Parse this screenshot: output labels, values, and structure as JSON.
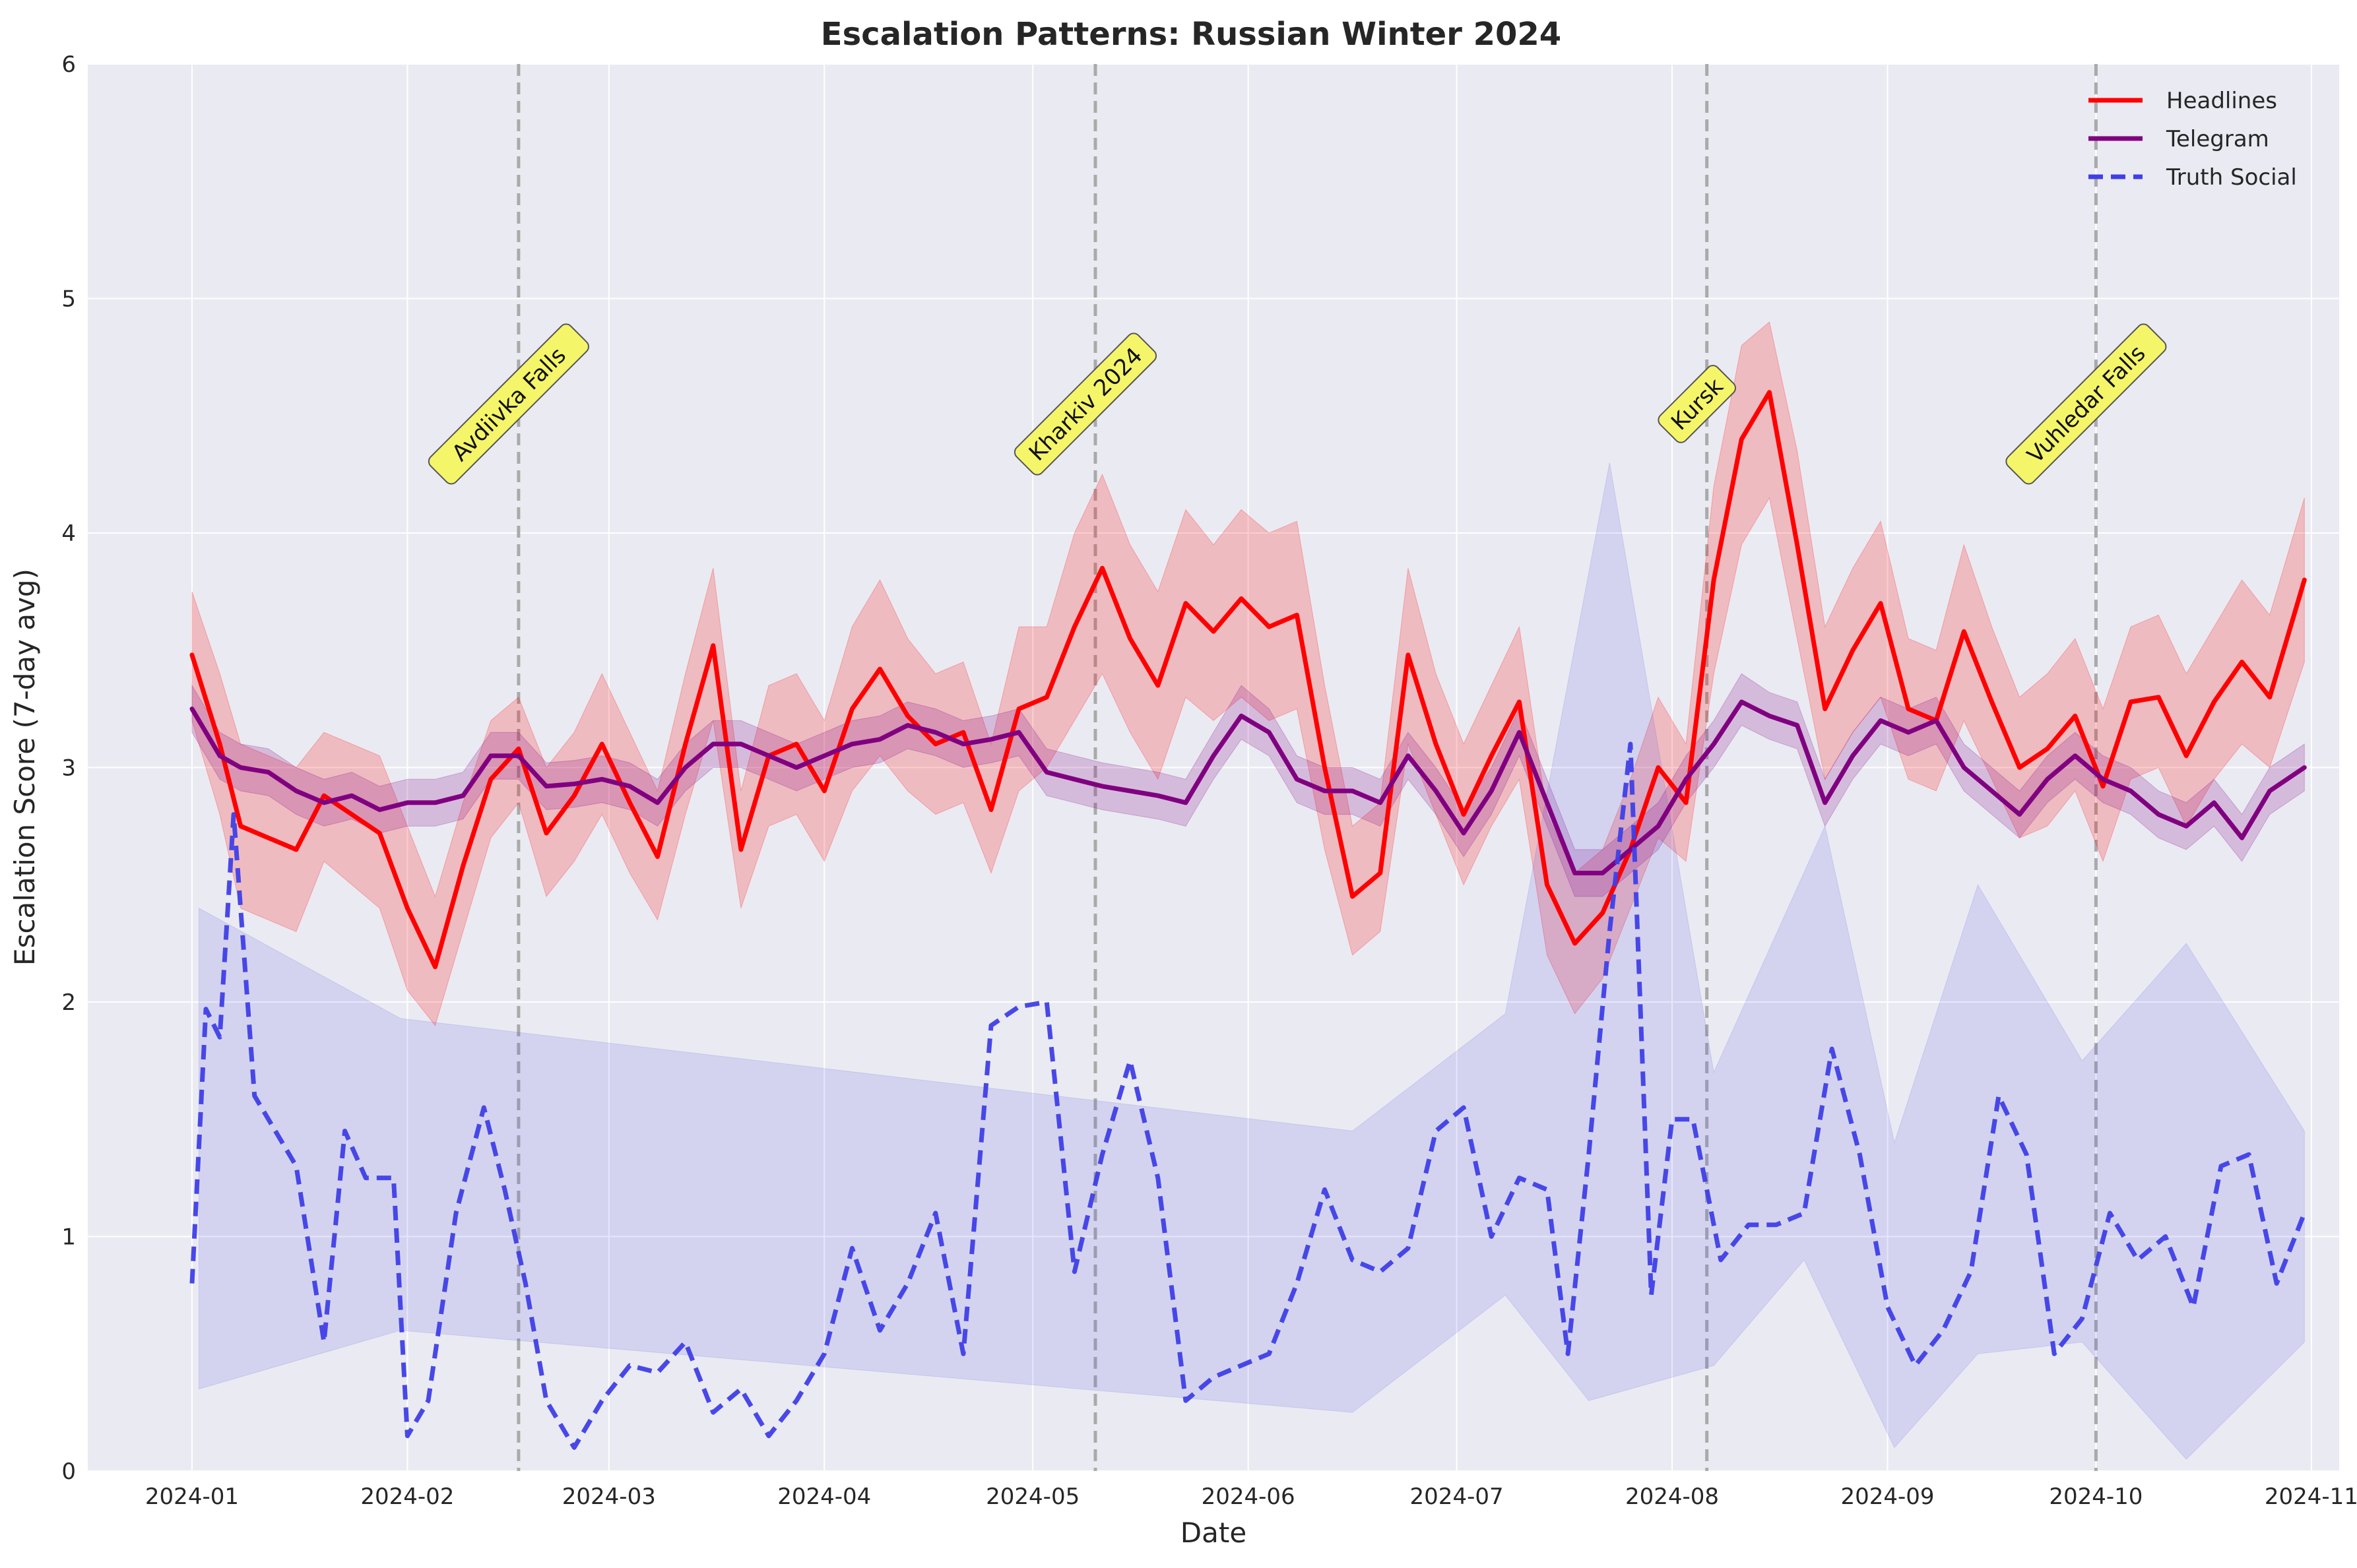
{
  "chart_data": {
    "type": "line",
    "title": "Escalation Patterns: Russian Winter 2024",
    "xlabel": "Date",
    "ylabel": "Escalation Score (7-day avg)",
    "xlim": [
      "2023-12-17",
      "2024-11-05"
    ],
    "ylim": [
      0,
      6
    ],
    "yticks": [
      "0",
      "1",
      "2",
      "3",
      "4",
      "5",
      "6"
    ],
    "xticks": [
      "2024-01",
      "2024-02",
      "2024-03",
      "2024-04",
      "2024-05",
      "2024-06",
      "2024-07",
      "2024-08",
      "2024-09",
      "2024-10",
      "2024-11"
    ],
    "grid": true,
    "legend_position": "top-right",
    "colors": {
      "background": "#eaeaf2",
      "grid": "#ffffff",
      "headlines": "#ff0000",
      "telegram": "#800080",
      "truth_social": "#3f3fe6",
      "event_line": "#aaaaaa",
      "event_box": "#f5f56a"
    },
    "events": [
      {
        "date": "2024-02-17",
        "label": "Avdiivka Falls"
      },
      {
        "date": "2024-05-10",
        "label": "Kharkiv 2024"
      },
      {
        "date": "2024-08-06",
        "label": "Kursk"
      },
      {
        "date": "2024-10-01",
        "label": "Vuhledar Falls"
      }
    ],
    "series": [
      {
        "name": "Headlines",
        "style": "solid",
        "x": [
          "2024-01-01",
          "2024-01-05",
          "2024-01-08",
          "2024-01-12",
          "2024-01-16",
          "2024-01-20",
          "2024-01-24",
          "2024-01-28",
          "2024-02-01",
          "2024-02-05",
          "2024-02-09",
          "2024-02-13",
          "2024-02-17",
          "2024-02-21",
          "2024-02-25",
          "2024-02-29",
          "2024-03-04",
          "2024-03-08",
          "2024-03-12",
          "2024-03-16",
          "2024-03-20",
          "2024-03-24",
          "2024-03-28",
          "2024-04-01",
          "2024-04-05",
          "2024-04-09",
          "2024-04-13",
          "2024-04-17",
          "2024-04-21",
          "2024-04-25",
          "2024-04-29",
          "2024-05-03",
          "2024-05-07",
          "2024-05-11",
          "2024-05-15",
          "2024-05-19",
          "2024-05-23",
          "2024-05-27",
          "2024-05-31",
          "2024-06-04",
          "2024-06-08",
          "2024-06-12",
          "2024-06-16",
          "2024-06-20",
          "2024-06-24",
          "2024-06-28",
          "2024-07-02",
          "2024-07-06",
          "2024-07-10",
          "2024-07-14",
          "2024-07-18",
          "2024-07-22",
          "2024-07-26",
          "2024-07-30",
          "2024-08-03",
          "2024-08-07",
          "2024-08-11",
          "2024-08-15",
          "2024-08-19",
          "2024-08-23",
          "2024-08-27",
          "2024-08-31",
          "2024-09-04",
          "2024-09-08",
          "2024-09-12",
          "2024-09-16",
          "2024-09-20",
          "2024-09-24",
          "2024-09-28",
          "2024-10-02",
          "2024-10-06",
          "2024-10-10",
          "2024-10-14",
          "2024-10-18",
          "2024-10-22",
          "2024-10-26",
          "2024-10-31"
        ],
        "y": [
          3.48,
          3.1,
          2.75,
          2.7,
          2.65,
          2.88,
          2.8,
          2.72,
          2.4,
          2.15,
          2.58,
          2.95,
          3.08,
          2.72,
          2.88,
          3.1,
          2.85,
          2.62,
          3.1,
          3.52,
          2.65,
          3.05,
          3.1,
          2.9,
          3.25,
          3.42,
          3.22,
          3.1,
          3.15,
          2.82,
          3.25,
          3.3,
          3.6,
          3.85,
          3.55,
          3.35,
          3.7,
          3.58,
          3.72,
          3.6,
          3.65,
          3.0,
          2.45,
          2.55,
          3.48,
          3.1,
          2.8,
          3.05,
          3.28,
          2.5,
          2.25,
          2.38,
          2.65,
          3.0,
          2.85,
          3.8,
          4.4,
          4.6,
          3.95,
          3.25,
          3.5,
          3.7,
          3.25,
          3.2,
          3.58,
          3.28,
          3.0,
          3.08,
          3.22,
          2.92,
          3.28,
          3.3,
          3.05,
          3.28,
          3.45,
          3.3,
          3.8
        ],
        "band_low": [
          3.2,
          2.8,
          2.4,
          2.35,
          2.3,
          2.6,
          2.5,
          2.4,
          2.05,
          1.9,
          2.3,
          2.7,
          2.85,
          2.45,
          2.6,
          2.8,
          2.55,
          2.35,
          2.8,
          3.2,
          2.4,
          2.75,
          2.8,
          2.6,
          2.9,
          3.05,
          2.9,
          2.8,
          2.85,
          2.55,
          2.9,
          3.0,
          3.2,
          3.4,
          3.15,
          2.95,
          3.3,
          3.2,
          3.3,
          3.2,
          3.25,
          2.65,
          2.2,
          2.3,
          3.1,
          2.8,
          2.5,
          2.75,
          2.95,
          2.2,
          1.95,
          2.1,
          2.4,
          2.7,
          2.6,
          3.4,
          3.95,
          4.15,
          3.55,
          2.95,
          3.15,
          3.3,
          2.95,
          2.9,
          3.2,
          2.95,
          2.7,
          2.75,
          2.9,
          2.6,
          2.95,
          3.0,
          2.75,
          2.95,
          3.1,
          3.0,
          3.45
        ],
        "band_high": [
          3.75,
          3.4,
          3.1,
          3.05,
          3.0,
          3.15,
          3.1,
          3.05,
          2.75,
          2.45,
          2.85,
          3.2,
          3.3,
          3.0,
          3.15,
          3.4,
          3.15,
          2.9,
          3.4,
          3.85,
          2.9,
          3.35,
          3.4,
          3.2,
          3.6,
          3.8,
          3.55,
          3.4,
          3.45,
          3.1,
          3.6,
          3.6,
          4.0,
          4.25,
          3.95,
          3.75,
          4.1,
          3.95,
          4.1,
          4.0,
          4.05,
          3.35,
          2.75,
          2.85,
          3.85,
          3.4,
          3.1,
          3.35,
          3.6,
          2.8,
          2.55,
          2.65,
          2.95,
          3.3,
          3.1,
          4.2,
          4.8,
          4.9,
          4.35,
          3.6,
          3.85,
          4.05,
          3.55,
          3.5,
          3.95,
          3.6,
          3.3,
          3.4,
          3.55,
          3.25,
          3.6,
          3.65,
          3.4,
          3.6,
          3.8,
          3.65,
          4.15
        ]
      },
      {
        "name": "Telegram",
        "style": "solid",
        "x": [
          "2024-01-01",
          "2024-01-05",
          "2024-01-08",
          "2024-01-12",
          "2024-01-16",
          "2024-01-20",
          "2024-01-24",
          "2024-01-28",
          "2024-02-01",
          "2024-02-05",
          "2024-02-09",
          "2024-02-13",
          "2024-02-17",
          "2024-02-21",
          "2024-02-25",
          "2024-02-29",
          "2024-03-04",
          "2024-03-08",
          "2024-03-12",
          "2024-03-16",
          "2024-03-20",
          "2024-03-24",
          "2024-03-28",
          "2024-04-01",
          "2024-04-05",
          "2024-04-09",
          "2024-04-13",
          "2024-04-17",
          "2024-04-21",
          "2024-04-25",
          "2024-04-29",
          "2024-05-03",
          "2024-05-07",
          "2024-05-11",
          "2024-05-15",
          "2024-05-19",
          "2024-05-23",
          "2024-05-27",
          "2024-05-31",
          "2024-06-04",
          "2024-06-08",
          "2024-06-12",
          "2024-06-16",
          "2024-06-20",
          "2024-06-24",
          "2024-06-28",
          "2024-07-02",
          "2024-07-06",
          "2024-07-10",
          "2024-07-14",
          "2024-07-18",
          "2024-07-22",
          "2024-07-26",
          "2024-07-30",
          "2024-08-03",
          "2024-08-07",
          "2024-08-11",
          "2024-08-15",
          "2024-08-19",
          "2024-08-23",
          "2024-08-27",
          "2024-08-31",
          "2024-09-04",
          "2024-09-08",
          "2024-09-12",
          "2024-09-16",
          "2024-09-20",
          "2024-09-24",
          "2024-09-28",
          "2024-10-02",
          "2024-10-06",
          "2024-10-10",
          "2024-10-14",
          "2024-10-18",
          "2024-10-22",
          "2024-10-26",
          "2024-10-31"
        ],
        "y": [
          3.25,
          3.05,
          3.0,
          2.98,
          2.9,
          2.85,
          2.88,
          2.82,
          2.85,
          2.85,
          2.88,
          3.05,
          3.05,
          2.92,
          2.93,
          2.95,
          2.92,
          2.85,
          3.0,
          3.1,
          3.1,
          3.05,
          3.0,
          3.05,
          3.1,
          3.12,
          3.18,
          3.15,
          3.1,
          3.12,
          3.15,
          2.98,
          2.95,
          2.92,
          2.9,
          2.88,
          2.85,
          3.05,
          3.22,
          3.15,
          2.95,
          2.9,
          2.9,
          2.85,
          3.05,
          2.9,
          2.72,
          2.9,
          3.15,
          2.85,
          2.55,
          2.55,
          2.65,
          2.75,
          2.95,
          3.1,
          3.28,
          3.22,
          3.18,
          2.85,
          3.05,
          3.2,
          3.15,
          3.2,
          3.0,
          2.9,
          2.8,
          2.95,
          3.05,
          2.95,
          2.9,
          2.8,
          2.75,
          2.85,
          2.7,
          2.9,
          3.0
        ],
        "band_low": [
          3.15,
          2.95,
          2.9,
          2.88,
          2.8,
          2.75,
          2.78,
          2.72,
          2.75,
          2.75,
          2.78,
          2.95,
          2.95,
          2.82,
          2.83,
          2.85,
          2.82,
          2.75,
          2.9,
          3.0,
          3.0,
          2.95,
          2.9,
          2.95,
          3.0,
          3.02,
          3.08,
          3.05,
          3.0,
          3.02,
          3.05,
          2.88,
          2.85,
          2.82,
          2.8,
          2.78,
          2.75,
          2.95,
          3.12,
          3.05,
          2.85,
          2.8,
          2.8,
          2.75,
          2.95,
          2.8,
          2.62,
          2.8,
          3.05,
          2.75,
          2.45,
          2.45,
          2.55,
          2.65,
          2.85,
          3.0,
          3.18,
          3.12,
          3.08,
          2.75,
          2.95,
          3.1,
          3.05,
          3.1,
          2.9,
          2.8,
          2.7,
          2.85,
          2.95,
          2.85,
          2.8,
          2.7,
          2.65,
          2.75,
          2.6,
          2.8,
          2.9
        ],
        "band_high": [
          3.35,
          3.15,
          3.1,
          3.08,
          3.0,
          2.95,
          2.98,
          2.92,
          2.95,
          2.95,
          2.98,
          3.15,
          3.15,
          3.02,
          3.03,
          3.05,
          3.02,
          2.95,
          3.1,
          3.2,
          3.2,
          3.15,
          3.1,
          3.15,
          3.2,
          3.22,
          3.28,
          3.25,
          3.2,
          3.22,
          3.25,
          3.08,
          3.05,
          3.02,
          3.0,
          2.98,
          2.95,
          3.15,
          3.35,
          3.25,
          3.05,
          3.0,
          3.0,
          2.95,
          3.15,
          3.0,
          2.82,
          3.0,
          3.25,
          2.95,
          2.65,
          2.65,
          2.75,
          2.85,
          3.05,
          3.2,
          3.4,
          3.32,
          3.28,
          2.95,
          3.15,
          3.3,
          3.25,
          3.3,
          3.1,
          3.0,
          2.9,
          3.05,
          3.15,
          3.05,
          3.0,
          2.9,
          2.85,
          2.95,
          2.8,
          3.0,
          3.1
        ]
      },
      {
        "name": "Truth Social",
        "style": "dashed",
        "x": [
          "2024-01-01",
          "2024-01-03",
          "2024-01-05",
          "2024-01-07",
          "2024-01-10",
          "2024-01-13",
          "2024-01-16",
          "2024-01-20",
          "2024-01-23",
          "2024-01-26",
          "2024-01-30",
          "2024-02-01",
          "2024-02-04",
          "2024-02-08",
          "2024-02-12",
          "2024-02-15",
          "2024-02-18",
          "2024-02-21",
          "2024-02-25",
          "2024-02-29",
          "2024-03-04",
          "2024-03-08",
          "2024-03-12",
          "2024-03-16",
          "2024-03-20",
          "2024-03-24",
          "2024-03-28",
          "2024-04-01",
          "2024-04-05",
          "2024-04-09",
          "2024-04-13",
          "2024-04-17",
          "2024-04-21",
          "2024-04-25",
          "2024-04-29",
          "2024-05-03",
          "2024-05-07",
          "2024-05-11",
          "2024-05-15",
          "2024-05-19",
          "2024-05-23",
          "2024-05-27",
          "2024-05-31",
          "2024-06-04",
          "2024-06-08",
          "2024-06-12",
          "2024-06-16",
          "2024-06-20",
          "2024-06-24",
          "2024-06-28",
          "2024-07-02",
          "2024-07-06",
          "2024-07-10",
          "2024-07-14",
          "2024-07-17",
          "2024-07-20",
          "2024-07-23",
          "2024-07-26",
          "2024-07-29",
          "2024-08-01",
          "2024-08-04",
          "2024-08-08",
          "2024-08-12",
          "2024-08-16",
          "2024-08-20",
          "2024-08-24",
          "2024-08-28",
          "2024-09-01",
          "2024-09-05",
          "2024-09-09",
          "2024-09-13",
          "2024-09-17",
          "2024-09-21",
          "2024-09-25",
          "2024-09-29",
          "2024-10-03",
          "2024-10-07",
          "2024-10-11",
          "2024-10-15",
          "2024-10-19",
          "2024-10-23",
          "2024-10-27",
          "2024-10-31"
        ],
        "y": [
          0.8,
          1.97,
          1.85,
          2.8,
          1.6,
          1.45,
          1.3,
          0.55,
          1.45,
          1.25,
          1.25,
          0.15,
          0.3,
          1.1,
          1.55,
          1.2,
          0.8,
          0.3,
          0.1,
          0.3,
          0.45,
          0.42,
          0.55,
          0.25,
          0.35,
          0.15,
          0.3,
          0.5,
          0.95,
          0.6,
          0.8,
          1.1,
          0.5,
          1.9,
          1.98,
          2.0,
          0.85,
          1.35,
          1.75,
          1.25,
          0.3,
          0.4,
          0.45,
          0.5,
          0.8,
          1.2,
          0.9,
          0.85,
          0.95,
          1.45,
          1.55,
          1.0,
          1.25,
          1.2,
          0.5,
          1.35,
          2.3,
          3.1,
          0.75,
          1.5,
          1.5,
          0.9,
          1.05,
          1.05,
          1.1,
          1.8,
          1.35,
          0.7,
          0.45,
          0.6,
          0.85,
          1.6,
          1.35,
          0.5,
          0.65,
          1.1,
          0.9,
          1.0,
          0.7,
          1.3,
          1.35,
          0.8,
          1.1
        ],
        "band_low": [
          "2024-01-02:0.35",
          "2024-01-31:0.6",
          "2024-06-16:0.25",
          "2024-07-08:0.75",
          "2024-07-20:0.3",
          "2024-08-07:0.45",
          "2024-08-20:0.9",
          "2024-09-02:0.1",
          "2024-09-14:0.5",
          "2024-09-29:0.55",
          "2024-10-14:0.05",
          "2024-10-31:0.55"
        ],
        "band_high": [
          "2024-01-02:2.4",
          "2024-01-31:1.93",
          "2024-06-16:1.45",
          "2024-07-08:1.95",
          "2024-07-23:4.3",
          "2024-08-07:1.7",
          "2024-08-23:2.75",
          "2024-09-02:1.4",
          "2024-09-14:2.5",
          "2024-09-29:1.75",
          "2024-10-14:2.25",
          "2024-10-31:1.45"
        ]
      }
    ]
  }
}
